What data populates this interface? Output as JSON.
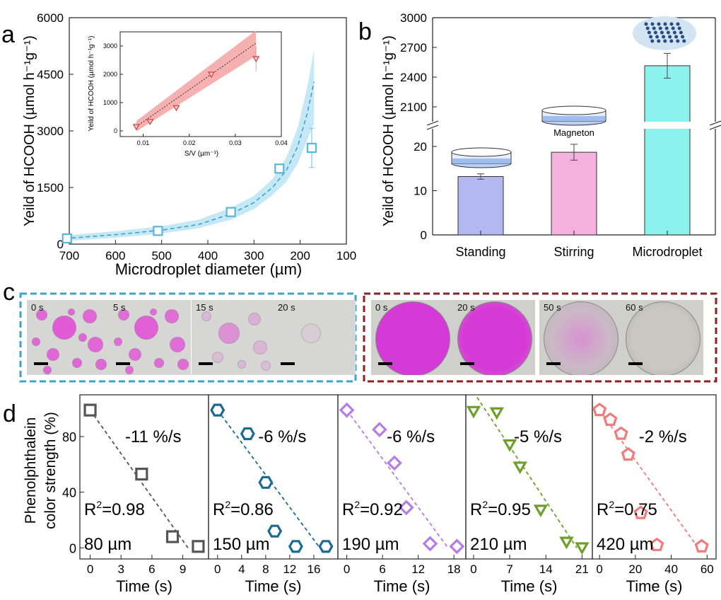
{
  "panels": {
    "a": {
      "label": "a",
      "chart_data": {
        "type": "scatter",
        "xlabel": "Microdroplet diameter (µm)",
        "ylabel": "Yeild of HCOOH (µmol h⁻¹g⁻¹)",
        "xlim": [
          700,
          100
        ],
        "ylim": [
          0,
          6000
        ],
        "xticks": [
          "700",
          "600",
          "500",
          "400",
          "300",
          "200",
          "100"
        ],
        "yticks": [
          "0",
          "1500",
          "3000",
          "4500",
          "6000"
        ],
        "x": [
          705,
          508,
          350,
          245,
          175
        ],
        "y": [
          150,
          350,
          850,
          2000,
          2550
        ],
        "yerr": [
          30,
          40,
          60,
          80,
          520
        ],
        "fit_x": [
          710,
          600,
          500,
          420,
          350,
          300,
          260,
          230,
          205,
          185,
          170
        ],
        "fit_y": [
          150,
          250,
          370,
          520,
          800,
          1100,
          1500,
          1950,
          2600,
          3450,
          4300
        ],
        "band_lo": [
          80,
          170,
          280,
          420,
          650,
          930,
          1300,
          1650,
          2150,
          2750,
          3200
        ],
        "band_hi": [
          230,
          340,
          470,
          650,
          960,
          1280,
          1720,
          2300,
          3100,
          4150,
          5150
        ]
      },
      "inset": {
        "chart_data": {
          "type": "scatter",
          "xlabel": "S/V (µm⁻¹)",
          "ylabel": "Yeild of HCOOH (µmol h⁻¹g⁻¹)",
          "xlim": [
            0.005,
            0.04
          ],
          "ylim": [
            -200,
            3500
          ],
          "xticks": [
            "0.01",
            "0.02",
            "0.03",
            "0.04"
          ],
          "yticks": [
            "0",
            "1000",
            "2000",
            "3000"
          ],
          "x": [
            0.0085,
            0.0115,
            0.0172,
            0.0248,
            0.0345
          ],
          "y": [
            150,
            330,
            820,
            2000,
            2550
          ],
          "yerr": [
            20,
            30,
            50,
            70,
            450
          ],
          "fit": [
            [
              0.0085,
              150
            ],
            [
              0.0345,
              3100
            ]
          ],
          "band_top": [
            [
              0.0085,
              350
            ],
            [
              0.0345,
              3550
            ]
          ],
          "band_bottom": [
            [
              0.0085,
              -20
            ],
            [
              0.0345,
              2650
            ]
          ]
        }
      }
    },
    "b": {
      "label": "b",
      "chart_data": {
        "type": "bar",
        "ylabel": "Yeild of HCOOH  (µmol h⁻¹g⁻¹)",
        "categories": [
          "Standing",
          "Stirring",
          "Microdroplet"
        ],
        "values": [
          13.2,
          18.7,
          2515
        ],
        "errors": [
          0.6,
          1.8,
          125
        ],
        "colors": [
          "#b3b8f0",
          "#f5b1dd",
          "#8cf2ee"
        ],
        "broken_axis": {
          "lower_range": [
            0,
            24
          ],
          "upper_range": [
            1950,
            3000
          ],
          "lower_ticks": [
            "0",
            "10",
            "20"
          ],
          "upper_ticks": [
            "2100",
            "2400",
            "2700",
            "3000"
          ]
        }
      },
      "annotations": {
        "magneton": "Magneton"
      }
    },
    "c": {
      "label": "c",
      "left_times": [
        "0 s",
        "5 s",
        "15 s",
        "20 s"
      ],
      "right_times": [
        "0 s",
        "20 s",
        "50 s",
        "60 s"
      ]
    },
    "d": {
      "label": "d",
      "ylabel_line1": "Phenolphthalein",
      "ylabel_line2": "color strength (%)",
      "yticks": [
        "0",
        "40",
        "80"
      ],
      "xlabel": "Time (s)",
      "chart_data": [
        {
          "type": "scatter",
          "marker": "square",
          "color": "#555555",
          "size": "80 µm",
          "rate": "-11 %/s",
          "r2": "0.98",
          "xlim": [
            -1,
            11.5
          ],
          "xticks": [
            "0",
            "3",
            "6",
            "9"
          ],
          "x": [
            0,
            5,
            8,
            10.5
          ],
          "y": [
            99,
            53,
            8,
            1
          ],
          "fit": [
            [
              0,
              99
            ],
            [
              9.5,
              0
            ]
          ]
        },
        {
          "type": "scatter",
          "marker": "hexagon",
          "color": "#1c6a92",
          "size": "150 µm",
          "rate": "-6 %/s",
          "r2": "0.86",
          "xlim": [
            -1.5,
            20
          ],
          "xticks": [
            "0",
            "4",
            "8",
            "12",
            "16"
          ],
          "x": [
            0,
            5,
            8,
            9.5,
            13,
            18
          ],
          "y": [
            99,
            82,
            47,
            12,
            1,
            1
          ],
          "fit": [
            [
              0,
              99
            ],
            [
              17,
              0
            ]
          ]
        },
        {
          "type": "scatter",
          "marker": "diamond",
          "color": "#b57be6",
          "size": "190 µm",
          "rate": "-6 %/s",
          "r2": "0.92",
          "xlim": [
            -1.5,
            20
          ],
          "xticks": [
            "0",
            "6",
            "12",
            "18"
          ],
          "x": [
            0,
            5.5,
            8,
            10,
            14,
            18.5
          ],
          "y": [
            99,
            85,
            61,
            29,
            3,
            1
          ],
          "fit": [
            [
              0,
              99
            ],
            [
              17,
              0
            ]
          ]
        },
        {
          "type": "scatter",
          "marker": "triangle-down",
          "color": "#6e9e2c",
          "size": "210 µm",
          "rate": "-5 %/s",
          "r2": "0.95",
          "xlim": [
            -1.5,
            23
          ],
          "xticks": [
            "0",
            "7",
            "14",
            "21"
          ],
          "x": [
            0,
            4.5,
            7,
            9,
            13,
            18,
            21
          ],
          "y": [
            99,
            98,
            75,
            59,
            28,
            5,
            1
          ],
          "fit": [
            [
              0,
              112
            ],
            [
              20,
              0
            ]
          ]
        },
        {
          "type": "scatter",
          "marker": "pentagon",
          "color": "#ef7b7b",
          "size": "420 µm",
          "rate": "-2 %/s",
          "r2": "0.75",
          "xlim": [
            -4,
            65
          ],
          "xticks": [
            "0",
            "20",
            "40",
            "60"
          ],
          "x": [
            0,
            6,
            12,
            16,
            23,
            32,
            57
          ],
          "y": [
            99,
            92,
            82,
            67,
            25,
            2,
            1
          ],
          "fit": [
            [
              0,
              99
            ],
            [
              55,
              0
            ]
          ]
        }
      ]
    }
  }
}
